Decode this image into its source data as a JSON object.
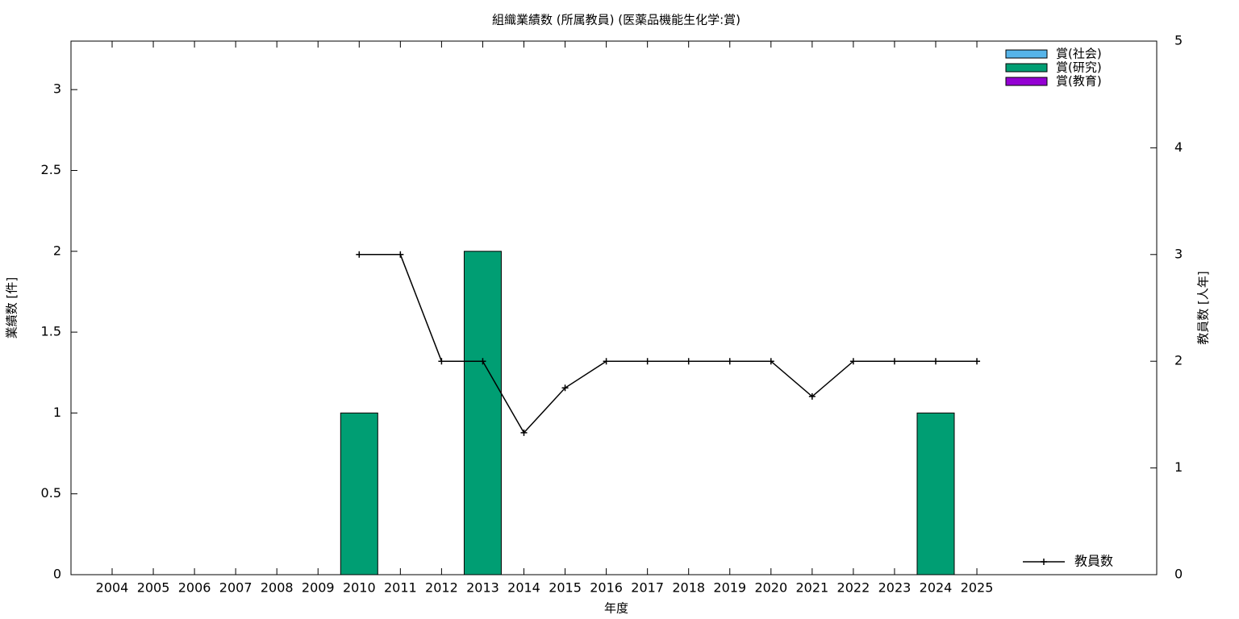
{
  "chart_data": {
    "type": "bar",
    "title": "組織業績数 (所属教員) (医薬品機能生化学:賞)",
    "x_label": "年度",
    "y_label": "業績数 [件]",
    "y2_label": "教員数 [人年]",
    "categories": [
      "2004",
      "2005",
      "2006",
      "2007",
      "2008",
      "2009",
      "2010",
      "2011",
      "2012",
      "2013",
      "2014",
      "2015",
      "2016",
      "2017",
      "2018",
      "2019",
      "2020",
      "2021",
      "2022",
      "2023",
      "2024",
      "2025"
    ],
    "stacked": true,
    "series": [
      {
        "name": "賞(社会)",
        "color": "#56b4e9",
        "values": [
          0,
          0,
          0,
          0,
          0,
          0,
          0,
          0,
          0,
          0,
          0,
          0,
          0,
          0,
          0,
          0,
          0,
          0,
          0,
          0,
          0,
          0
        ]
      },
      {
        "name": "賞(研究)",
        "color": "#009e73",
        "values": [
          0,
          0,
          0,
          0,
          0,
          0,
          1,
          0,
          0,
          2,
          0,
          0,
          0,
          0,
          0,
          0,
          0,
          0,
          0,
          0,
          1,
          0
        ]
      },
      {
        "name": "賞(教育)",
        "color": "#9400d3",
        "values": [
          0,
          0,
          0,
          0,
          0,
          0,
          0,
          0,
          0,
          0,
          0,
          0,
          0,
          0,
          0,
          0,
          0,
          0,
          0,
          0,
          0,
          0
        ]
      },
      {
        "name": "教員数",
        "color": "#000000",
        "type": "line",
        "axis": "y2",
        "values": [
          null,
          null,
          null,
          null,
          null,
          null,
          3,
          3,
          2,
          2,
          1.33,
          1.75,
          2,
          2,
          2,
          2,
          2,
          1.67,
          2,
          2,
          2,
          2
        ]
      }
    ],
    "ylim": [
      0,
      3.3
    ],
    "yticks": [
      0,
      0.5,
      1,
      1.5,
      2,
      2.5,
      3
    ],
    "y2lim": [
      0,
      5
    ],
    "y2ticks": [
      0,
      1,
      2,
      3,
      4,
      5
    ],
    "legend": "top-right"
  }
}
